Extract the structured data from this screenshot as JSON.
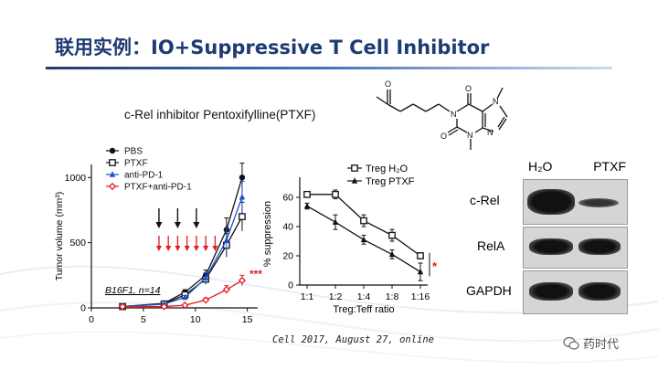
{
  "slide": {
    "title": "联用实例：IO+Suppressive T Cell Inhibitor",
    "compound_label": "c-Rel inhibitor Pentoxifylline(PTXF)",
    "citation": "Cell 2017, August 27, online",
    "watermark": "药时代",
    "colors": {
      "title": "#1f3b73",
      "red": "#e41a1c",
      "blue": "#1f4fc9",
      "black": "#111111"
    }
  },
  "molecule": {
    "atoms": {
      "o_ketone": "O",
      "o_c2": "O",
      "o_c6": "O",
      "n1": "N",
      "n3": "N",
      "n7": "N",
      "n9": "N"
    }
  },
  "western_blot": {
    "columns": [
      "H₂O",
      "PTXF"
    ],
    "rows": [
      "c-Rel",
      "RelA",
      "GAPDH"
    ]
  },
  "chart_data": [
    {
      "type": "line",
      "xlabel": "",
      "ylabel": "Tumor volume (mm³)",
      "annotation": "B16F1, n=14",
      "significance": "***",
      "xlim": [
        0,
        16
      ],
      "ylim": [
        0,
        1100
      ],
      "xticks": [
        "0",
        "5",
        "10",
        "15"
      ],
      "yticks": [
        "0",
        "500",
        "1000"
      ],
      "arrows_black_days": [
        6.5,
        8.3,
        10.1
      ],
      "arrows_red_days": [
        6.5,
        7.4,
        8.3,
        9.2,
        10.1,
        11,
        11.9
      ],
      "x": [
        3,
        7,
        9,
        11,
        13,
        14.5
      ],
      "series": [
        {
          "name": "PBS",
          "marker": "circle-filled",
          "color": "#111111",
          "values": [
            10,
            35,
            120,
            250,
            600,
            1000
          ]
        },
        {
          "name": "PTXF",
          "marker": "square-open",
          "color": "#111111",
          "values": [
            10,
            30,
            100,
            220,
            480,
            700
          ]
        },
        {
          "name": "anti-PD-1",
          "marker": "triangle",
          "color": "#1f4fc9",
          "values": [
            10,
            30,
            80,
            230,
            520,
            850
          ]
        },
        {
          "name": "PTXF+anti-PD-1",
          "marker": "diamond",
          "color": "#e41a1c",
          "values": [
            10,
            10,
            20,
            60,
            140,
            210
          ]
        }
      ],
      "errors": [
        [
          2,
          8,
          20,
          40,
          90,
          110
        ],
        [
          2,
          6,
          20,
          40,
          90,
          110
        ],
        [
          2,
          6,
          15,
          40,
          90,
          120
        ],
        [
          2,
          3,
          5,
          15,
          30,
          40
        ]
      ]
    },
    {
      "type": "line",
      "xlabel": "Treg:Teff ratio",
      "ylabel": "% suppression",
      "significance": "*",
      "ylim": [
        0,
        70
      ],
      "yticks": [
        "0",
        "20",
        "40",
        "60"
      ],
      "categories": [
        "1:1",
        "1:2",
        "1:4",
        "1:8",
        "1:16"
      ],
      "series": [
        {
          "name": "Treg H₂O",
          "marker": "square-open",
          "values": [
            62,
            62,
            44,
            34,
            20
          ]
        },
        {
          "name": "Treg PTXF",
          "marker": "triangle",
          "values": [
            54,
            43,
            31,
            21,
            9
          ]
        }
      ],
      "errors": [
        [
          2,
          3,
          4,
          4,
          2
        ],
        [
          2,
          5,
          3,
          3,
          6
        ]
      ]
    }
  ]
}
